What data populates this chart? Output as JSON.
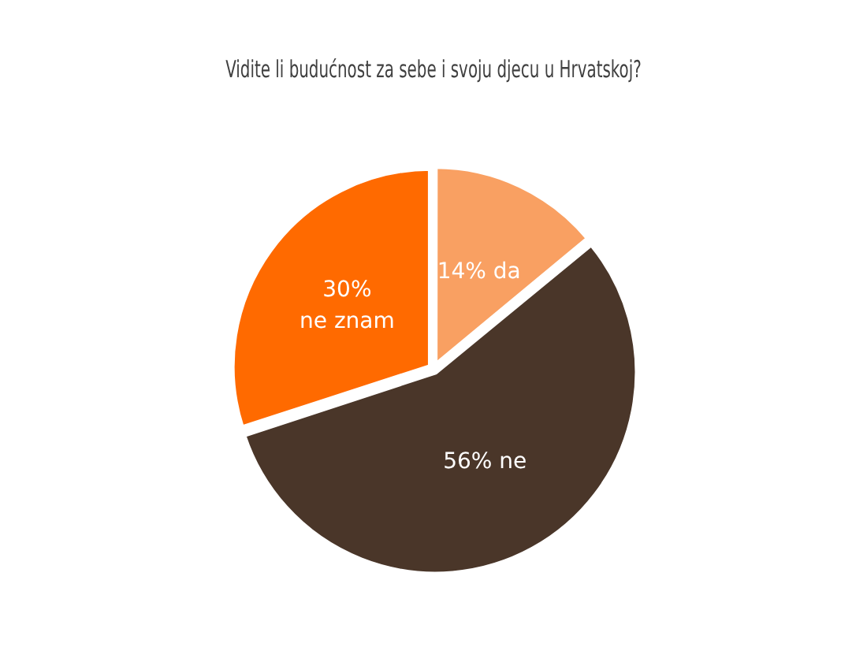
{
  "chart_data": {
    "type": "pie",
    "title": "Vidite li budućnost za sebe i svoju djecu u Hrvatskoj?",
    "categories": [
      "da",
      "ne",
      "ne znam"
    ],
    "values": [
      14,
      56,
      30
    ],
    "colors": [
      "#f9a062",
      "#4a3629",
      "#ff6a00"
    ],
    "value_labels": [
      "14%",
      "56%",
      "30%"
    ],
    "legend": false
  }
}
